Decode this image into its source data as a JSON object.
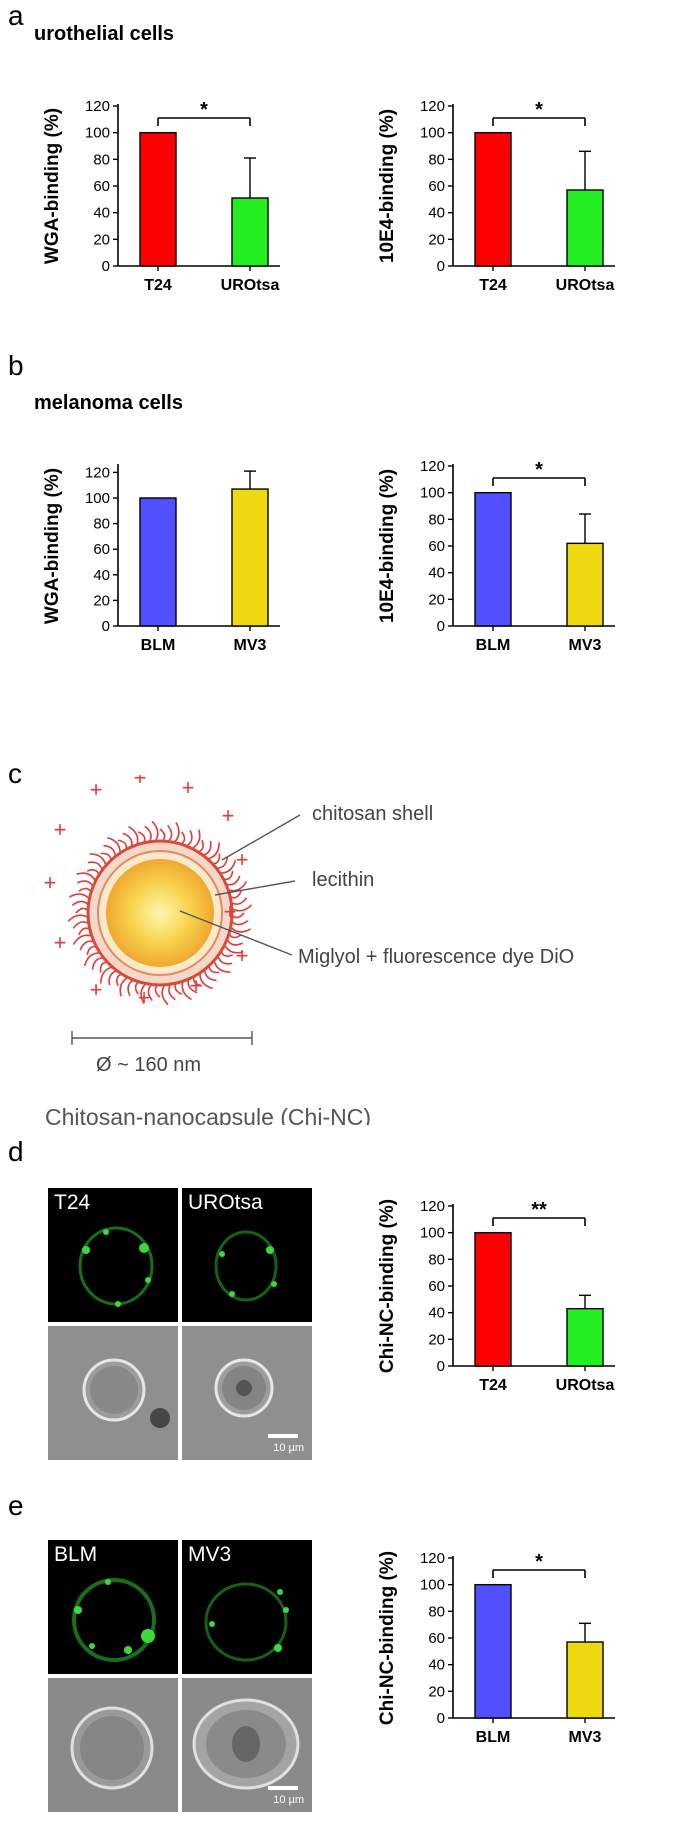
{
  "panels": {
    "a": {
      "letter": "a",
      "title": "urothelial cells"
    },
    "b": {
      "letter": "b",
      "title": "melanoma cells"
    },
    "c": {
      "letter": "c"
    },
    "d": {
      "letter": "d"
    },
    "e": {
      "letter": "e"
    }
  },
  "schematic": {
    "labels": [
      "chitosan shell",
      "lecithin",
      "Miglyol + fluorescence dye DiO"
    ],
    "size_label": "Ø  ~ 160 nm",
    "caption": "Chitosan-nanocapsule (Chi-NC)",
    "charge_symbol": "+",
    "colors": {
      "shell": "#e03a3a",
      "core": "#f7d34a",
      "charge": "#e03a3a"
    }
  },
  "micrographs": {
    "d": {
      "labels": [
        "T24",
        "UROtsa"
      ],
      "scale": "10 µm"
    },
    "e": {
      "labels": [
        "BLM",
        "MV3"
      ],
      "scale": "10 µm"
    }
  },
  "chart_data": [
    {
      "id": "a1",
      "type": "bar",
      "categories": [
        "T24",
        "UROtsa"
      ],
      "values": [
        100,
        51
      ],
      "errors": [
        0,
        30
      ],
      "colors": [
        "#ff0000",
        "#22ee22"
      ],
      "ylabel": "WGA-binding (%)",
      "ylim": [
        0,
        120
      ],
      "yticks": [
        0,
        20,
        40,
        60,
        80,
        100,
        120
      ],
      "significance": "*"
    },
    {
      "id": "a2",
      "type": "bar",
      "categories": [
        "T24",
        "UROtsa"
      ],
      "values": [
        100,
        57
      ],
      "errors": [
        0,
        29
      ],
      "colors": [
        "#ff0000",
        "#22ee22"
      ],
      "ylabel": "10E4-binding (%)",
      "ylim": [
        0,
        120
      ],
      "yticks": [
        0,
        20,
        40,
        60,
        80,
        100,
        120
      ],
      "significance": "*"
    },
    {
      "id": "b1",
      "type": "bar",
      "categories": [
        "BLM",
        "MV3"
      ],
      "values": [
        100,
        107
      ],
      "errors": [
        0,
        14
      ],
      "colors": [
        "#5050ff",
        "#eed810"
      ],
      "ylabel": "WGA-binding (%)",
      "ylim": [
        0,
        125
      ],
      "yticks": [
        0,
        20,
        40,
        60,
        80,
        100,
        120
      ],
      "significance": ""
    },
    {
      "id": "b2",
      "type": "bar",
      "categories": [
        "BLM",
        "MV3"
      ],
      "values": [
        100,
        62
      ],
      "errors": [
        0,
        22
      ],
      "colors": [
        "#5050ff",
        "#eed810"
      ],
      "ylabel": "10E4-binding (%)",
      "ylim": [
        0,
        120
      ],
      "yticks": [
        0,
        20,
        40,
        60,
        80,
        100,
        120
      ],
      "significance": "*"
    },
    {
      "id": "d1",
      "type": "bar",
      "categories": [
        "T24",
        "UROtsa"
      ],
      "values": [
        100,
        43
      ],
      "errors": [
        0,
        10
      ],
      "colors": [
        "#ff0000",
        "#22ee22"
      ],
      "ylabel": "Chi-NC-binding (%)",
      "ylim": [
        0,
        120
      ],
      "yticks": [
        0,
        20,
        40,
        60,
        80,
        100,
        120
      ],
      "significance": "**"
    },
    {
      "id": "e1",
      "type": "bar",
      "categories": [
        "BLM",
        "MV3"
      ],
      "values": [
        100,
        57
      ],
      "errors": [
        0,
        14
      ],
      "colors": [
        "#5050ff",
        "#eed810"
      ],
      "ylabel": "Chi-NC-binding (%)",
      "ylim": [
        0,
        120
      ],
      "yticks": [
        0,
        20,
        40,
        60,
        80,
        100,
        120
      ],
      "significance": "*"
    }
  ]
}
